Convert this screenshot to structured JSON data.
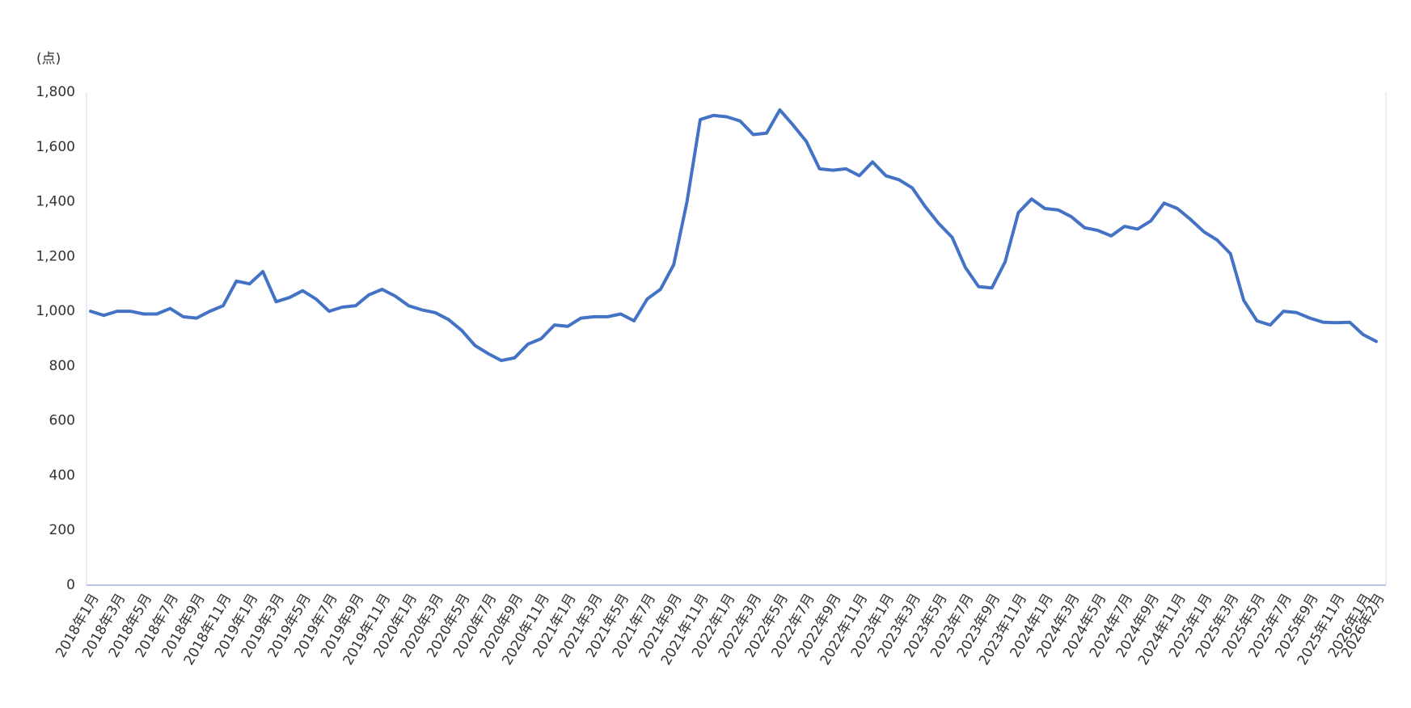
{
  "chart_data": {
    "type": "line",
    "y_label": "(点)",
    "categories": [
      "2018年1月",
      null,
      "2018年3月",
      null,
      "2018年5月",
      null,
      "2018年7月",
      null,
      "2018年9月",
      null,
      "2018年11月",
      null,
      "2019年1月",
      null,
      "2019年3月",
      null,
      "2019年5月",
      null,
      "2019年7月",
      null,
      "2019年9月",
      null,
      "2019年11月",
      null,
      "2020年1月",
      null,
      "2020年3月",
      null,
      "2020年5月",
      null,
      "2020年7月",
      null,
      "2020年9月",
      null,
      "2020年11月",
      null,
      "2021年1月",
      null,
      "2021年3月",
      null,
      "2021年5月",
      null,
      "2021年7月",
      null,
      "2021年9月",
      null,
      "2021年11月",
      null,
      "2022年1月",
      null,
      "2022年3月",
      null,
      "2022年5月",
      null,
      "2022年7月",
      null,
      "2022年9月",
      null,
      "2022年11月",
      null,
      "2023年1月",
      null,
      "2023年3月",
      null,
      "2023年5月",
      null,
      "2023年7月",
      null,
      "2023年9月",
      null,
      "2023年11月",
      null,
      "2024年1月",
      null,
      "2024年3月",
      null,
      "2024年5月",
      null,
      "2024年7月",
      null,
      "2024年9月",
      null,
      "2024年11月",
      null,
      "2025年1月",
      null,
      "2025年3月",
      null,
      "2025年5月",
      null,
      "2025年7月",
      null,
      "2025年9月",
      null,
      "2025年11月",
      null,
      "2026年1月",
      "2026年2月"
    ],
    "series": [
      {
        "color": "#4472c4",
        "values": [
          1000,
          985,
          1000,
          1000,
          990,
          990,
          1010,
          980,
          975,
          1000,
          1020,
          1110,
          1100,
          1145,
          1035,
          1050,
          1075,
          1045,
          1000,
          1015,
          1020,
          1060,
          1080,
          1055,
          1020,
          1005,
          995,
          970,
          930,
          875,
          845,
          820,
          830,
          880,
          900,
          950,
          945,
          975,
          980,
          980,
          990,
          965,
          1045,
          1080,
          1170,
          1400,
          1700,
          1715,
          1710,
          1695,
          1645,
          1650,
          1735,
          1680,
          1620,
          1520,
          1515,
          1520,
          1495,
          1545,
          1495,
          1480,
          1450,
          1380,
          1320,
          1270,
          1160,
          1090,
          1085,
          1180,
          1360,
          1410,
          1375,
          1370,
          1345,
          1305,
          1295,
          1275,
          1310,
          1300,
          1330,
          1395,
          1375,
          1335,
          1290,
          1260,
          1210,
          1040,
          965,
          950,
          1000,
          995,
          975,
          960,
          958,
          960,
          915,
          890
        ]
      }
    ],
    "ylim": [
      0,
      1800
    ],
    "yticks": [
      0,
      200,
      400,
      600,
      800,
      {
        "value": 1000,
        "label": "1,000"
      },
      {
        "value": 1200,
        "label": "1,200"
      },
      {
        "value": 1400,
        "label": "1,400"
      },
      {
        "value": 1600,
        "label": "1,600"
      },
      {
        "value": 1800,
        "label": "1,800"
      }
    ],
    "grid": false
  }
}
